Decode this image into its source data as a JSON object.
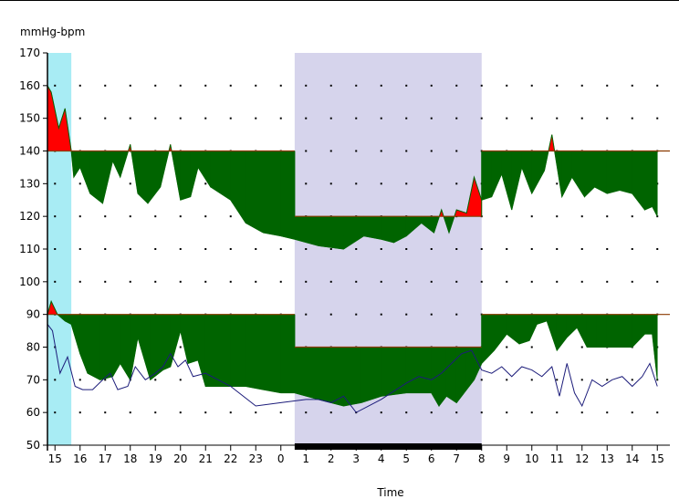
{
  "chart_data": {
    "type": "area",
    "y_unit_label": "mmHg-bpm",
    "xlabel": "Time",
    "ylim": [
      50,
      170
    ],
    "y_ticks": [
      170,
      160,
      150,
      140,
      130,
      120,
      110,
      100,
      90,
      80,
      70,
      60,
      50
    ],
    "x_range": [
      14.7,
      39.5
    ],
    "x_tick_labels": [
      {
        "x": 15,
        "label": "15"
      },
      {
        "x": 16,
        "label": "16"
      },
      {
        "x": 17,
        "label": "17"
      },
      {
        "x": 18,
        "label": "18"
      },
      {
        "x": 19,
        "label": "19"
      },
      {
        "x": 20,
        "label": "20"
      },
      {
        "x": 21,
        "label": "21"
      },
      {
        "x": 22,
        "label": "22"
      },
      {
        "x": 23,
        "label": "23"
      },
      {
        "x": 24,
        "label": "0"
      },
      {
        "x": 25,
        "label": "1"
      },
      {
        "x": 26,
        "label": "2"
      },
      {
        "x": 27,
        "label": "3"
      },
      {
        "x": 28,
        "label": "4"
      },
      {
        "x": 29,
        "label": "5"
      },
      {
        "x": 30,
        "label": "6"
      },
      {
        "x": 31,
        "label": "7"
      },
      {
        "x": 32,
        "label": "8"
      },
      {
        "x": 33,
        "label": "9"
      },
      {
        "x": 34,
        "label": "10"
      },
      {
        "x": 35,
        "label": "11"
      },
      {
        "x": 36,
        "label": "12"
      },
      {
        "x": 37,
        "label": "13"
      },
      {
        "x": 38,
        "label": "14"
      },
      {
        "x": 39,
        "label": "15"
      }
    ],
    "grid": "dotted",
    "shaded_periods": [
      {
        "x0": 14.7,
        "x1": 15.65,
        "color": "#a8ecf4"
      },
      {
        "x0": 24.55,
        "x1": 32.0,
        "color": "#d6d4ec"
      }
    ],
    "sleep_bar": {
      "x0": 24.55,
      "x1": 32.0,
      "color": "#000000"
    },
    "colors": {
      "below_threshold": "#006400",
      "above_threshold": "#ff0000",
      "threshold_line": "#8b3a00",
      "heart_rate_line": "#1c1c7a"
    },
    "thresholds": {
      "systolic": [
        {
          "x0": 14.7,
          "x1": 24.55,
          "y": 140
        },
        {
          "x0": 24.55,
          "x1": 32.0,
          "y": 120
        },
        {
          "x0": 32.0,
          "x1": 39.5,
          "y": 140
        }
      ],
      "diastolic": [
        {
          "x0": 14.7,
          "x1": 24.55,
          "y": 90
        },
        {
          "x0": 24.55,
          "x1": 32.0,
          "y": 80
        },
        {
          "x0": 32.0,
          "x1": 39.5,
          "y": 90
        }
      ]
    },
    "series": [
      {
        "key": "systolic",
        "x": [
          14.7,
          14.85,
          15.15,
          15.4,
          15.65,
          15.75,
          16.0,
          16.4,
          16.9,
          17.3,
          17.6,
          18.0,
          18.3,
          18.7,
          19.2,
          19.6,
          20.0,
          20.4,
          20.7,
          21.2,
          22.0,
          22.6,
          23.3,
          24.0,
          24.55,
          25.5,
          26.5,
          27.3,
          28.0,
          28.5,
          29.0,
          29.6,
          30.1,
          30.4,
          30.7,
          31.0,
          31.4,
          31.7,
          32.0,
          32.4,
          32.8,
          33.2,
          33.6,
          34.0,
          34.5,
          34.8,
          35.2,
          35.6,
          36.1,
          36.5,
          37.0,
          37.5,
          38.0,
          38.5,
          38.8,
          39.0
        ],
        "y": [
          160,
          158,
          147,
          153,
          140,
          132,
          135,
          127,
          124,
          137,
          132,
          142,
          127,
          124,
          129,
          142,
          125,
          126,
          135,
          129,
          125,
          118,
          115,
          114,
          113,
          111,
          110,
          114,
          113,
          112,
          114,
          118,
          115,
          122,
          115,
          122,
          121,
          132,
          125,
          126,
          133,
          122,
          135,
          127,
          134,
          145,
          126,
          132,
          126,
          129,
          127,
          128,
          127,
          122,
          123,
          120
        ]
      },
      {
        "key": "diastolic",
        "x": [
          14.7,
          14.85,
          15.1,
          15.4,
          15.65,
          16.0,
          16.3,
          16.8,
          17.3,
          17.6,
          18.0,
          18.3,
          18.8,
          19.3,
          19.6,
          20.0,
          20.3,
          20.7,
          21.0,
          22.0,
          22.6,
          23.3,
          24.0,
          24.55,
          25.5,
          26.5,
          27.2,
          28.0,
          29.0,
          29.5,
          30.0,
          30.3,
          30.6,
          31.0,
          31.4,
          31.7,
          32.0,
          32.5,
          33.0,
          33.5,
          33.9,
          34.2,
          34.6,
          35.0,
          35.4,
          35.8,
          36.2,
          36.6,
          37.0,
          37.5,
          38.0,
          38.5,
          38.8,
          39.0
        ],
        "y": [
          90,
          94,
          90,
          88,
          87,
          78,
          72,
          70,
          71,
          75,
          70,
          83,
          70,
          73,
          74,
          85,
          75,
          76,
          68,
          68,
          68,
          67,
          66,
          66,
          64,
          62,
          63,
          65,
          66,
          66,
          66,
          62,
          65,
          63,
          67,
          70,
          75,
          79,
          84,
          81,
          82,
          87,
          88,
          79,
          83,
          86,
          80,
          80,
          80,
          80,
          80,
          84,
          84,
          70
        ]
      },
      {
        "key": "heart_rate",
        "x": [
          14.7,
          14.9,
          15.2,
          15.5,
          15.8,
          16.1,
          16.5,
          16.9,
          17.2,
          17.5,
          17.9,
          18.2,
          18.6,
          19.0,
          19.3,
          19.6,
          19.9,
          20.2,
          20.5,
          21.0,
          22.0,
          23.0,
          24.0,
          25.0,
          25.5,
          26.0,
          26.5,
          27.0,
          28.0,
          29.0,
          29.5,
          30.0,
          30.4,
          30.8,
          31.2,
          31.6,
          32.0,
          32.4,
          32.8,
          33.2,
          33.6,
          34.0,
          34.4,
          34.8,
          35.1,
          35.4,
          35.7,
          36.0,
          36.4,
          36.8,
          37.2,
          37.6,
          38.0,
          38.4,
          38.7,
          39.0
        ],
        "y": [
          87,
          85,
          72,
          77,
          68,
          67,
          67,
          70,
          72,
          67,
          68,
          74,
          70,
          72,
          74,
          78,
          74,
          76,
          71,
          72,
          68,
          62,
          63,
          64,
          64,
          63,
          65,
          60,
          64,
          69,
          71,
          70,
          72,
          75,
          78,
          79,
          73,
          72,
          74,
          71,
          74,
          73,
          71,
          74,
          65,
          75,
          66,
          62,
          70,
          68,
          70,
          71,
          68,
          71,
          75,
          68
        ]
      }
    ]
  }
}
